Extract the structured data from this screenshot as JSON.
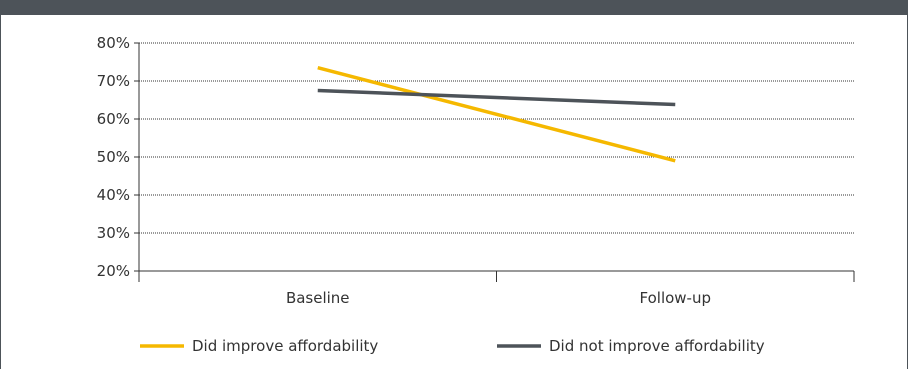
{
  "chart_data": {
    "type": "line",
    "title": "",
    "xlabel": "",
    "ylabel": "",
    "categories": [
      "Baseline",
      "Follow-up"
    ],
    "series": [
      {
        "name": "Did improve affordability",
        "values": [
          73.5,
          49
        ],
        "color": "#f5b800"
      },
      {
        "name": "Did not improve affordability",
        "values": [
          67.5,
          63.8
        ],
        "color": "#4d5359"
      }
    ],
    "ylim": [
      20,
      80
    ],
    "yticks": [
      80,
      70,
      60,
      50,
      40,
      30,
      20
    ],
    "ytick_labels": [
      "80%",
      "70%",
      "60%",
      "50%",
      "40%",
      "30%",
      "20%"
    ],
    "grid": true,
    "legend_position": "bottom"
  }
}
